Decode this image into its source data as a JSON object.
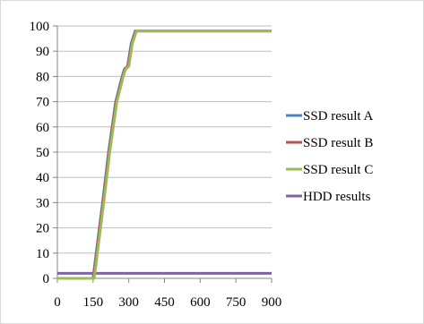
{
  "chart_data": {
    "type": "line",
    "title": "",
    "xlabel": "",
    "ylabel": "",
    "xlim": [
      0,
      900
    ],
    "ylim": [
      0,
      100
    ],
    "x_ticks": [
      0,
      150,
      300,
      450,
      600,
      750,
      900
    ],
    "y_ticks": [
      0,
      10,
      20,
      30,
      40,
      50,
      60,
      70,
      80,
      90,
      100
    ],
    "grid": "horizontal",
    "legend_position": "right",
    "series": [
      {
        "name": "SSD result A",
        "color": "#4F81BD",
        "points": [
          [
            0,
            0
          ],
          [
            150,
            0
          ],
          [
            163,
            10
          ],
          [
            190,
            30
          ],
          [
            215,
            50
          ],
          [
            245,
            70
          ],
          [
            272,
            80
          ],
          [
            282,
            83
          ],
          [
            295,
            84
          ],
          [
            310,
            93
          ],
          [
            327,
            98
          ],
          [
            900,
            98
          ]
        ]
      },
      {
        "name": "SSD result B",
        "color": "#C0504D",
        "points": [
          [
            0,
            0
          ],
          [
            152,
            0
          ],
          [
            165,
            10
          ],
          [
            192,
            30
          ],
          [
            217,
            50
          ],
          [
            247,
            70
          ],
          [
            274,
            80
          ],
          [
            284,
            83
          ],
          [
            297,
            84
          ],
          [
            312,
            93
          ],
          [
            329,
            98
          ],
          [
            900,
            98
          ]
        ]
      },
      {
        "name": "SSD result C",
        "color": "#9BBB59",
        "points": [
          [
            0,
            0
          ],
          [
            155,
            0
          ],
          [
            168,
            10
          ],
          [
            195,
            30
          ],
          [
            220,
            50
          ],
          [
            250,
            70
          ],
          [
            277,
            80
          ],
          [
            287,
            83
          ],
          [
            300,
            84
          ],
          [
            315,
            93
          ],
          [
            332,
            98
          ],
          [
            900,
            98
          ]
        ]
      },
      {
        "name": "HDD results",
        "color": "#8064A2",
        "points": [
          [
            0,
            2
          ],
          [
            900,
            2
          ]
        ]
      }
    ]
  }
}
